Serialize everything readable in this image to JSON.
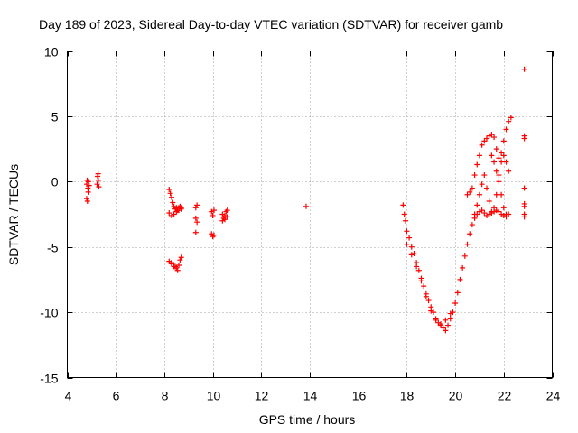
{
  "chart_data": {
    "type": "scatter",
    "title": "Day 189 of 2023, Sidereal Day-to-day VTEC variation (SDTVAR) for receiver gamb",
    "xlabel": "GPS time / hours",
    "ylabel": "SDTVAR / TECUs",
    "xlim": [
      4,
      24
    ],
    "ylim": [
      -15,
      10
    ],
    "xticks": [
      4,
      6,
      8,
      10,
      12,
      14,
      16,
      18,
      20,
      22,
      24
    ],
    "xtick_labels": [
      "4",
      "6",
      "8",
      "10",
      "12",
      "14",
      "16",
      "18",
      "20",
      "22",
      "24"
    ],
    "yticks": [
      -15,
      -10,
      -5,
      0,
      5,
      10
    ],
    "ytick_labels": [
      "-15",
      "-10",
      "-5",
      "0",
      "5",
      "10"
    ],
    "grid": true,
    "marker": "plus",
    "color": "#ff0000",
    "series": [
      {
        "name": "SDTVAR",
        "x": [
          4.8,
          4.82,
          4.85,
          4.87,
          4.9,
          4.8,
          4.83,
          4.86,
          5.25,
          5.28,
          5.3,
          5.27,
          5.23,
          8.2,
          8.25,
          8.3,
          8.35,
          8.4,
          8.45,
          8.5,
          8.55,
          8.6,
          8.65,
          8.7,
          8.2,
          8.3,
          8.4,
          8.5,
          8.6,
          8.7,
          8.2,
          8.3,
          8.4,
          8.5,
          8.55,
          8.6,
          8.65,
          8.7,
          8.3,
          8.45,
          9.3,
          9.35,
          9.3,
          9.35,
          9.3,
          9.95,
          10.0,
          10.05,
          9.95,
          10.0,
          10.05,
          10.4,
          10.45,
          10.5,
          10.55,
          10.6,
          10.4,
          10.5,
          10.6,
          13.85,
          17.85,
          17.9,
          17.95,
          18.0,
          18.1,
          18.2,
          18.3,
          18.4,
          18.5,
          18.6,
          18.7,
          18.8,
          18.9,
          19.0,
          19.1,
          19.2,
          19.3,
          19.4,
          19.5,
          19.6,
          19.7,
          19.8,
          19.9,
          20.0,
          20.1,
          20.2,
          20.3,
          20.4,
          20.5,
          20.6,
          20.7,
          20.8,
          20.9,
          21.0,
          21.1,
          21.2,
          21.3,
          21.4,
          21.5,
          21.6,
          21.7,
          21.8,
          21.9,
          22.0,
          22.1,
          22.2,
          18.0,
          18.2,
          18.4,
          18.6,
          18.8,
          19.0,
          19.2,
          19.4,
          19.6,
          19.8,
          20.5,
          20.6,
          20.7,
          20.8,
          20.9,
          21.0,
          21.1,
          21.2,
          21.3,
          21.4,
          21.5,
          21.6,
          21.7,
          21.8,
          21.9,
          22.0,
          22.1,
          22.2,
          22.3,
          20.8,
          20.9,
          21.0,
          21.1,
          21.2,
          21.3,
          21.4,
          21.5,
          21.6,
          21.7,
          21.8,
          21.9,
          22.0,
          22.1,
          22.2,
          21.5,
          21.6,
          21.7,
          21.8,
          21.9,
          22.0,
          22.1,
          22.85,
          22.85,
          22.85,
          22.85,
          22.85,
          22.85,
          22.85,
          22.85
        ],
        "y": [
          -0.2,
          0.1,
          -0.5,
          0.0,
          -0.3,
          -1.3,
          -1.5,
          -0.8,
          0.4,
          0.1,
          -0.4,
          0.6,
          -0.2,
          -0.6,
          -0.9,
          -1.2,
          -1.6,
          -1.9,
          -2.1,
          -2.0,
          -2.2,
          -2.0,
          -1.9,
          -2.1,
          -2.4,
          -2.6,
          -2.5,
          -2.3,
          -2.2,
          -2.0,
          -6.1,
          -6.3,
          -6.5,
          -6.6,
          -6.8,
          -6.4,
          -6.0,
          -5.8,
          -6.2,
          -6.5,
          -2.0,
          -1.8,
          -2.8,
          -3.1,
          -3.9,
          -2.3,
          -2.6,
          -2.2,
          -4.0,
          -4.2,
          -4.1,
          -2.5,
          -2.8,
          -2.6,
          -2.3,
          -2.2,
          -3.0,
          -2.9,
          -2.7,
          -1.9,
          -1.8,
          -2.5,
          -3.0,
          -3.8,
          -4.3,
          -5.0,
          -5.5,
          -6.2,
          -6.8,
          -7.4,
          -8.0,
          -8.6,
          -9.1,
          -9.6,
          -10.0,
          -10.5,
          -10.8,
          -11.0,
          -11.2,
          -11.4,
          -11.0,
          -10.5,
          -10.0,
          -9.3,
          -8.5,
          -7.5,
          -6.6,
          -5.7,
          -4.8,
          -4.0,
          -3.3,
          -2.8,
          -2.5,
          -2.3,
          -2.2,
          -2.4,
          -2.6,
          -2.5,
          -2.4,
          -2.3,
          -2.2,
          -2.3,
          -2.5,
          -2.6,
          -2.7,
          -2.5,
          -4.8,
          -5.6,
          -6.5,
          -7.6,
          -8.8,
          -9.9,
          -10.6,
          -10.9,
          -10.6,
          -10.1,
          -1.0,
          -0.8,
          -0.5,
          0.5,
          1.3,
          2.0,
          2.8,
          3.1,
          3.3,
          3.5,
          3.6,
          3.4,
          2.5,
          1.8,
          2.2,
          3.1,
          4.0,
          4.6,
          4.9,
          -2.5,
          -1.8,
          -1.0,
          -0.2,
          0.5,
          -0.5,
          -1.5,
          -2.3,
          -2.0,
          -1.0,
          0.5,
          1.5,
          2.0,
          1.5,
          0.8,
          2.0,
          1.5,
          0.8,
          0.0,
          -1.0,
          -2.0,
          -2.5,
          8.6,
          3.5,
          3.3,
          -0.5,
          -1.7,
          -1.9,
          -2.5,
          -2.7
        ]
      }
    ]
  }
}
